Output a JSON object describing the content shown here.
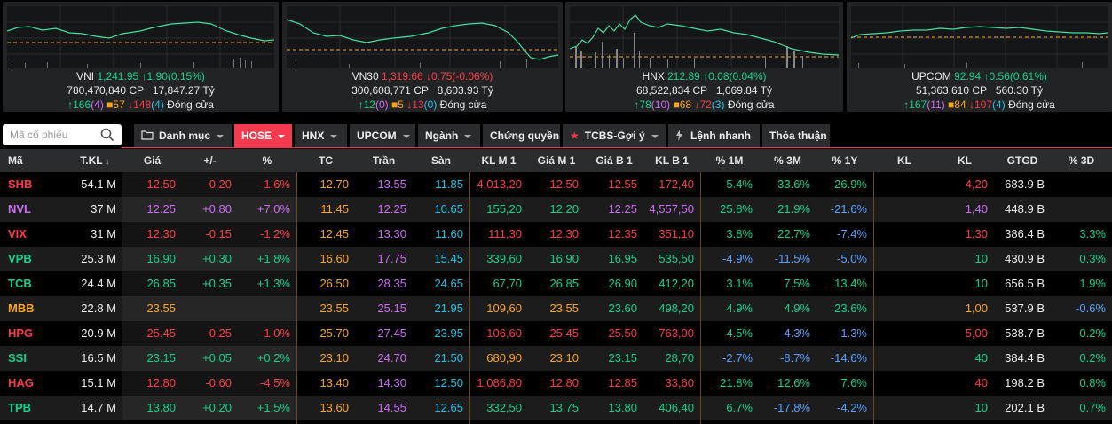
{
  "colors": {
    "up": "#0fd48b",
    "down": "#ff3b47",
    "ref": "#f7a51d",
    "ceil": "#cf6cf6",
    "floor": "#22c4e8",
    "neg_blue": "#5aa0ff",
    "active_tab": "#f33a4f"
  },
  "indices": [
    {
      "name": "VNI",
      "value": "1,241.95",
      "arrow": "↑",
      "change": "1.90(0.15%)",
      "dir": "up",
      "volume": "780,470,840",
      "vol_unit": "CP",
      "amount": "17,847.27",
      "amount_unit": "Tỷ",
      "adv": "166",
      "adv_ceil": "4",
      "unch": "57",
      "dec": "148",
      "dec_floor": "4",
      "status": "Đóng cửa"
    },
    {
      "name": "VN30",
      "value": "1,319.66",
      "arrow": "↓",
      "change": "0.75(-0.06%)",
      "dir": "down",
      "volume": "300,608,771",
      "vol_unit": "CP",
      "amount": "8,603.93",
      "amount_unit": "Tỷ",
      "adv": "12",
      "adv_ceil": "0",
      "unch": "5",
      "dec": "13",
      "dec_floor": "0",
      "status": "Đóng cửa"
    },
    {
      "name": "HNX",
      "value": "212.89",
      "arrow": "↑",
      "change": "0.08(0.04%)",
      "dir": "up",
      "volume": "68,522,834",
      "vol_unit": "CP",
      "amount": "1,069.84",
      "amount_unit": "Tỷ",
      "adv": "78",
      "adv_ceil": "10",
      "unch": "68",
      "dec": "72",
      "dec_floor": "3",
      "status": "Đóng cửa"
    },
    {
      "name": "UPCOM",
      "value": "92.94",
      "arrow": "↑",
      "change": "0.56(0.61%)",
      "dir": "up",
      "volume": "51,363,610",
      "vol_unit": "CP",
      "amount": "560.30",
      "amount_unit": "Tỷ",
      "adv": "167",
      "adv_ceil": "11",
      "unch": "84",
      "dec": "107",
      "dec_floor": "4",
      "status": "Đóng cửa"
    }
  ],
  "search": {
    "placeholder": "Mã cổ phiếu"
  },
  "tabs": [
    {
      "label": "Danh mục",
      "icon": "folder-icon",
      "caret": true,
      "active": false
    },
    {
      "label": "HOSE",
      "icon": "",
      "caret": true,
      "active": true
    },
    {
      "label": "HNX",
      "icon": "",
      "caret": true,
      "active": false
    },
    {
      "label": "UPCOM",
      "icon": "",
      "caret": true,
      "active": false
    },
    {
      "label": "Ngành",
      "icon": "",
      "caret": true,
      "active": false
    },
    {
      "label": "Chứng quyền",
      "icon": "",
      "caret": false,
      "active": false
    },
    {
      "label": "TCBS-Gợi ý",
      "icon": "star-icon",
      "caret": true,
      "active": false
    },
    {
      "label": "Lệnh nhanh",
      "icon": "bolt-icon",
      "caret": false,
      "active": false
    },
    {
      "label": "Thỏa thuận",
      "icon": "",
      "caret": false,
      "active": false
    }
  ],
  "columns": [
    "Mã",
    "T.KL",
    "Giá",
    "+/-",
    "%",
    "TC",
    "Trần",
    "Sàn",
    "KL M 1",
    "Giá M 1",
    "Giá B 1",
    "KL B 1",
    "% 1M",
    "% 3M",
    "% 1Y",
    "KL",
    "KL",
    "GTGD",
    "% 3D"
  ],
  "rows": [
    {
      "sym": "SHB",
      "tkl": "54.1 M",
      "price": "12.50",
      "chg": "-0.20",
      "pct": "-1.6%",
      "tc": "12.70",
      "tran": "13.55",
      "san": "11.85",
      "klm1": "4,013,20",
      "giam1": "12.50",
      "giab1": "12.55",
      "klb1": "172,40",
      "m1": "5.4%",
      "m3": "33.6%",
      "y1": "26.9%",
      "kl1": "",
      "kl2": "4,20",
      "gtgd": "683.9 B",
      "d3": "",
      "tone": "down",
      "m1_tone": "up",
      "m3_tone": "up",
      "y1_tone": "up",
      "kl2_tone": "down",
      "d3_tone": "up"
    },
    {
      "sym": "NVL",
      "tkl": "37 M",
      "price": "12.25",
      "chg": "+0.80",
      "pct": "+7.0%",
      "tc": "11.45",
      "tran": "12.25",
      "san": "10.65",
      "klm1": "155,20",
      "giam1": "12.20",
      "giab1": "12.25",
      "klb1": "4,557,50",
      "m1": "25.8%",
      "m3": "21.9%",
      "y1": "-21.6%",
      "kl1": "",
      "kl2": "1,40",
      "gtgd": "448.9 B",
      "d3": "",
      "tone": "ceil",
      "m1_tone": "up",
      "m3_tone": "up",
      "y1_tone": "neg",
      "kl2_tone": "ceil",
      "d3_tone": "up"
    },
    {
      "sym": "VIX",
      "tkl": "31 M",
      "price": "12.30",
      "chg": "-0.15",
      "pct": "-1.2%",
      "tc": "12.45",
      "tran": "13.30",
      "san": "11.60",
      "klm1": "111,30",
      "giam1": "12.30",
      "giab1": "12.35",
      "klb1": "351,10",
      "m1": "3.8%",
      "m3": "22.7%",
      "y1": "-7.4%",
      "kl1": "",
      "kl2": "1,30",
      "gtgd": "386.4 B",
      "d3": "3.3%",
      "tone": "down",
      "m1_tone": "up",
      "m3_tone": "up",
      "y1_tone": "neg",
      "kl2_tone": "down",
      "d3_tone": "up"
    },
    {
      "sym": "VPB",
      "tkl": "25.3 M",
      "price": "16.90",
      "chg": "+0.30",
      "pct": "+1.8%",
      "tc": "16.60",
      "tran": "17.75",
      "san": "15.45",
      "klm1": "339,60",
      "giam1": "16.90",
      "giab1": "16.95",
      "klb1": "535,50",
      "m1": "-4.9%",
      "m3": "-11.5%",
      "y1": "-5.0%",
      "kl1": "",
      "kl2": "10",
      "gtgd": "430.9 B",
      "d3": "0.3%",
      "tone": "up",
      "m1_tone": "neg",
      "m3_tone": "neg",
      "y1_tone": "neg",
      "kl2_tone": "up",
      "d3_tone": "up"
    },
    {
      "sym": "TCB",
      "tkl": "24.4 M",
      "price": "26.85",
      "chg": "+0.35",
      "pct": "+1.3%",
      "tc": "26.50",
      "tran": "28.35",
      "san": "24.65",
      "klm1": "67,70",
      "giam1": "26.85",
      "giab1": "26.90",
      "klb1": "412,20",
      "m1": "3.1%",
      "m3": "7.5%",
      "y1": "13.4%",
      "kl1": "",
      "kl2": "10",
      "gtgd": "656.5 B",
      "d3": "1.9%",
      "tone": "up",
      "m1_tone": "up",
      "m3_tone": "up",
      "y1_tone": "up",
      "kl2_tone": "up",
      "d3_tone": "up"
    },
    {
      "sym": "MBB",
      "tkl": "22.8 M",
      "price": "23.55",
      "chg": "",
      "pct": "",
      "tc": "23.55",
      "tran": "25.15",
      "san": "21.95",
      "klm1": "109,60",
      "giam1": "23.55",
      "giab1": "23.60",
      "klb1": "498,20",
      "m1": "4.9%",
      "m3": "4.9%",
      "y1": "23.6%",
      "kl1": "",
      "kl2": "1,00",
      "gtgd": "537.9 B",
      "d3": "-0.6%",
      "tone": "ref",
      "m1_tone": "up",
      "m3_tone": "up",
      "y1_tone": "up",
      "kl2_tone": "ref",
      "d3_tone": "neg"
    },
    {
      "sym": "HPG",
      "tkl": "20.9 M",
      "price": "25.45",
      "chg": "-0.25",
      "pct": "-1.0%",
      "tc": "25.70",
      "tran": "27.45",
      "san": "23.95",
      "klm1": "106,60",
      "giam1": "25.45",
      "giab1": "25.50",
      "klb1": "763,00",
      "m1": "4.5%",
      "m3": "-4.3%",
      "y1": "-1.3%",
      "kl1": "",
      "kl2": "5,00",
      "gtgd": "538.7 B",
      "d3": "0.2%",
      "tone": "down",
      "m1_tone": "up",
      "m3_tone": "neg",
      "y1_tone": "neg",
      "kl2_tone": "down",
      "d3_tone": "up"
    },
    {
      "sym": "SSI",
      "tkl": "16.5 M",
      "price": "23.15",
      "chg": "+0.05",
      "pct": "+0.2%",
      "tc": "23.10",
      "tran": "24.70",
      "san": "21.50",
      "klm1": "680,90",
      "giam1": "23.10",
      "giab1": "23.15",
      "klb1": "28,70",
      "m1": "-2.7%",
      "m3": "-8.7%",
      "y1": "-14.6%",
      "kl1": "",
      "kl2": "40",
      "gtgd": "384.4 B",
      "d3": "0.2%",
      "tone": "up",
      "m1_tone": "neg",
      "m3_tone": "neg",
      "y1_tone": "neg",
      "kl2_tone": "up",
      "d3_tone": "up"
    },
    {
      "sym": "HAG",
      "tkl": "15.1 M",
      "price": "12.80",
      "chg": "-0.60",
      "pct": "-4.5%",
      "tc": "13.40",
      "tran": "14.30",
      "san": "12.50",
      "klm1": "1,086,80",
      "giam1": "12.80",
      "giab1": "12.85",
      "klb1": "33,60",
      "m1": "21.8%",
      "m3": "12.6%",
      "y1": "7.6%",
      "kl1": "",
      "kl2": "40",
      "gtgd": "198.2 B",
      "d3": "0.8%",
      "tone": "down",
      "m1_tone": "up",
      "m3_tone": "up",
      "y1_tone": "up",
      "kl2_tone": "down",
      "d3_tone": "up"
    },
    {
      "sym": "TPB",
      "tkl": "14.7 M",
      "price": "13.80",
      "chg": "+0.20",
      "pct": "+1.5%",
      "tc": "13.60",
      "tran": "14.55",
      "san": "12.65",
      "klm1": "332,50",
      "giam1": "13.75",
      "giab1": "13.80",
      "klb1": "406,40",
      "m1": "6.7%",
      "m3": "-17.8%",
      "y1": "-4.2%",
      "kl1": "",
      "kl2": "10",
      "gtgd": "202.1 B",
      "d3": "0.7%",
      "tone": "up",
      "m1_tone": "up",
      "m3_tone": "neg",
      "y1_tone": "neg",
      "kl2_tone": "up",
      "d3_tone": "up"
    }
  ]
}
